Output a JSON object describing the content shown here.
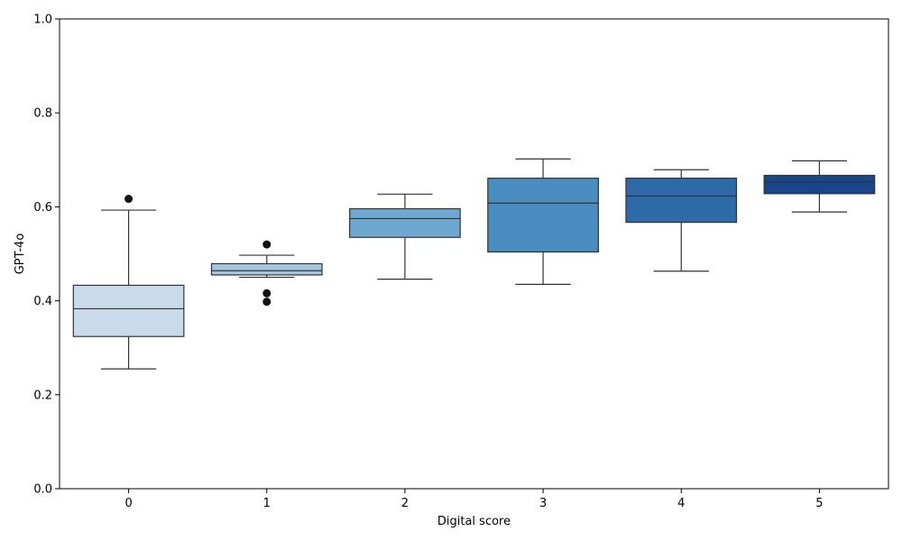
{
  "chart_data": {
    "type": "box",
    "title": "",
    "xlabel": "Digital score",
    "ylabel": "GPT-4o",
    "ylim": [
      0.0,
      1.0
    ],
    "yticks": [
      "0.0",
      "0.2",
      "0.4",
      "0.6",
      "0.8",
      "1.0"
    ],
    "grid": false,
    "categories": [
      "0",
      "1",
      "2",
      "3",
      "4",
      "5"
    ],
    "boxes": [
      {
        "category": "0",
        "whisker_low": 0.255,
        "q1": 0.324,
        "median": 0.383,
        "q3": 0.433,
        "whisker_high": 0.593,
        "outliers": [
          0.617
        ],
        "color": "#c9daeb"
      },
      {
        "category": "1",
        "whisker_low": 0.45,
        "q1": 0.455,
        "median": 0.464,
        "q3": 0.479,
        "whisker_high": 0.497,
        "outliers": [
          0.52,
          0.416,
          0.398
        ],
        "color": "#a3c7e0"
      },
      {
        "category": "2",
        "whisker_low": 0.446,
        "q1": 0.535,
        "median": 0.575,
        "q3": 0.596,
        "whisker_high": 0.627,
        "outliers": [],
        "color": "#6ea8d1"
      },
      {
        "category": "3",
        "whisker_low": 0.435,
        "q1": 0.504,
        "median": 0.608,
        "q3": 0.661,
        "whisker_high": 0.702,
        "outliers": [],
        "color": "#4a8dc0"
      },
      {
        "category": "4",
        "whisker_low": 0.463,
        "q1": 0.567,
        "median": 0.623,
        "q3": 0.661,
        "whisker_high": 0.679,
        "outliers": [],
        "color": "#2e6aa8"
      },
      {
        "category": "5",
        "whisker_low": 0.589,
        "q1": 0.628,
        "median": 0.653,
        "q3": 0.667,
        "whisker_high": 0.698,
        "outliers": [],
        "color": "#17468a"
      }
    ]
  }
}
